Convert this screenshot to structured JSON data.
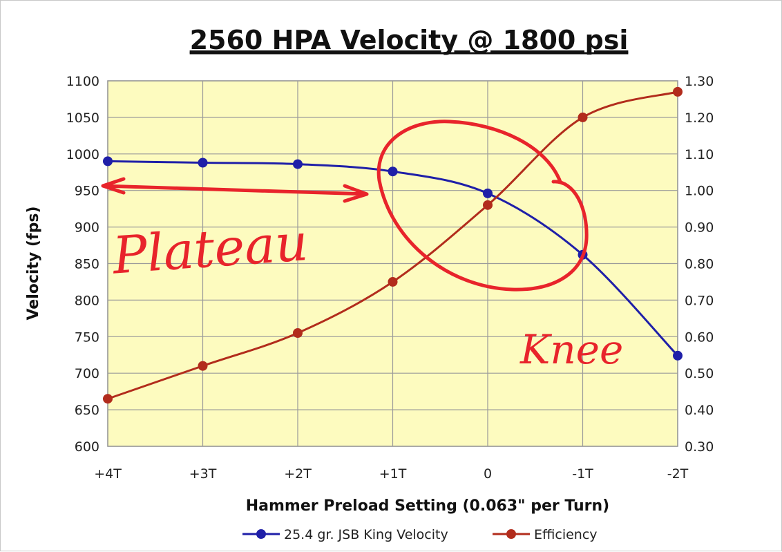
{
  "chart_data": {
    "type": "line",
    "title": "2560 HPA Velocity @ 1800 psi",
    "xlabel": "Hammer Preload Setting (0.063\" per Turn)",
    "ylabel": "Velocity (fps)",
    "categories": [
      "+4T",
      "+3T",
      "+2T",
      "+1T",
      "0",
      "-1T",
      "-2T"
    ],
    "ylim": [
      600,
      1100
    ],
    "y_ticks": [
      "600",
      "650",
      "700",
      "750",
      "800",
      "850",
      "900",
      "950",
      "1000",
      "1050",
      "1100"
    ],
    "y2lim": [
      0.3,
      1.3
    ],
    "y2_ticks": [
      "0.30",
      "0.40",
      "0.50",
      "0.60",
      "0.70",
      "0.80",
      "0.90",
      "1.00",
      "1.10",
      "1.20",
      "1.30"
    ],
    "grid": true,
    "legend_position": "bottom",
    "series": [
      {
        "name": "25.4 gr. JSB King Velocity",
        "axis": "left",
        "color": "#1f1fa8",
        "values": [
          990,
          988,
          986,
          976,
          946,
          862,
          724
        ]
      },
      {
        "name": "Efficiency",
        "axis": "right",
        "color": "#b22c1c",
        "values": [
          0.43,
          0.52,
          0.61,
          0.75,
          0.96,
          1.2,
          1.27
        ]
      }
    ],
    "annotations": [
      "Plateau",
      "Knee"
    ],
    "plot_background": "#fdfbbf",
    "annotation_color": "#e8242b"
  }
}
